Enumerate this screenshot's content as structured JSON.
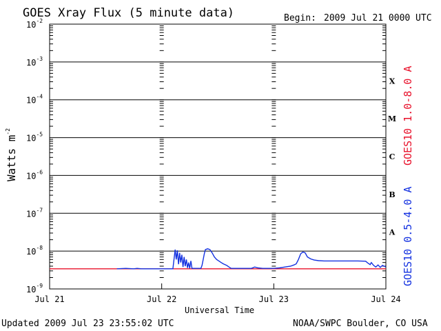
{
  "title": "GOES Xray Flux (5 minute data)",
  "begin": {
    "label": "Begin:",
    "value": "2009 Jul 21 0000 UTC"
  },
  "updated": "Updated 2009 Jul 23 23:55:02 UTC",
  "credit": "NOAA/SWPC Boulder, CO USA",
  "colors": {
    "long_channel": "#e8102a",
    "short_channel": "#1230e0",
    "axes": "#000000"
  },
  "chart_data": {
    "type": "line",
    "title": "GOES Xray Flux (5 minute data)",
    "xlabel": "Universal Time",
    "ylabel": "Watts m",
    "ylabel_superscript": "-2",
    "y_scale": "log",
    "ylim": [
      1e-09,
      0.01
    ],
    "x_days": [
      "Jul 21",
      "Jul 22",
      "Jul 23",
      "Jul 24"
    ],
    "y_ticks": [
      {
        "base": "10",
        "exp": "-2"
      },
      {
        "base": "10",
        "exp": "-3"
      },
      {
        "base": "10",
        "exp": "-4"
      },
      {
        "base": "10",
        "exp": "-5"
      },
      {
        "base": "10",
        "exp": "-6"
      },
      {
        "base": "10",
        "exp": "-7"
      },
      {
        "base": "10",
        "exp": "-8"
      },
      {
        "base": "10",
        "exp": "-9"
      }
    ],
    "flare_classes": [
      {
        "label": "X",
        "band_low": 0.0001,
        "band_high": 0.001
      },
      {
        "label": "M",
        "band_low": 1e-05,
        "band_high": 0.0001
      },
      {
        "label": "C",
        "band_low": 1e-06,
        "band_high": 1e-05
      },
      {
        "label": "B",
        "band_low": 1e-07,
        "band_high": 1e-06
      },
      {
        "label": "A",
        "band_low": 1e-08,
        "band_high": 1e-07
      }
    ],
    "grid": "horizontal lines at each decade",
    "series": [
      {
        "name": "GOES10 1.0-8.0 A",
        "color": "#e8102a",
        "points": [
          [
            0.0,
            3.4e-09
          ],
          [
            3.0,
            3.4e-09
          ]
        ]
      },
      {
        "name": "GOES10 0.5-4.0 A",
        "color": "#1230e0",
        "points": [
          [
            0.6,
            3.4e-09
          ],
          [
            0.68,
            3.5e-09
          ],
          [
            0.75,
            3.4e-09
          ],
          [
            0.78,
            3.5e-09
          ],
          [
            0.82,
            3.4e-09
          ],
          [
            1.1,
            3.4e-09
          ],
          [
            1.12,
            1.1e-08
          ],
          [
            1.13,
            6e-09
          ],
          [
            1.14,
            1.05e-08
          ],
          [
            1.15,
            4.5e-09
          ],
          [
            1.16,
            9e-09
          ],
          [
            1.17,
            5e-09
          ],
          [
            1.18,
            8e-09
          ],
          [
            1.19,
            3.8e-09
          ],
          [
            1.2,
            7e-09
          ],
          [
            1.21,
            4e-09
          ],
          [
            1.22,
            6e-09
          ],
          [
            1.23,
            3.6e-09
          ],
          [
            1.24,
            5e-09
          ],
          [
            1.25,
            3.5e-09
          ],
          [
            1.26,
            5.5e-09
          ],
          [
            1.27,
            3.5e-09
          ],
          [
            1.28,
            3.5e-09
          ],
          [
            1.35,
            3.5e-09
          ],
          [
            1.36,
            4.2e-09
          ],
          [
            1.37,
            6e-09
          ],
          [
            1.38,
            8.5e-09
          ],
          [
            1.39,
            1.1e-08
          ],
          [
            1.41,
            1.15e-08
          ],
          [
            1.43,
            1.1e-08
          ],
          [
            1.45,
            9e-09
          ],
          [
            1.47,
            7e-09
          ],
          [
            1.49,
            6e-09
          ],
          [
            1.51,
            5.5e-09
          ],
          [
            1.53,
            5e-09
          ],
          [
            1.55,
            4.6e-09
          ],
          [
            1.58,
            4.2e-09
          ],
          [
            1.6,
            3.8e-09
          ],
          [
            1.62,
            3.5e-09
          ],
          [
            1.7,
            3.5e-09
          ],
          [
            1.8,
            3.5e-09
          ],
          [
            1.83,
            3.8e-09
          ],
          [
            1.86,
            3.6e-09
          ],
          [
            1.9,
            3.5e-09
          ],
          [
            1.95,
            3.5e-09
          ],
          [
            2.0,
            3.5e-09
          ],
          [
            2.05,
            3.6e-09
          ],
          [
            2.1,
            3.8e-09
          ],
          [
            2.15,
            4e-09
          ],
          [
            2.18,
            4.3e-09
          ],
          [
            2.2,
            4.6e-09
          ],
          [
            2.22,
            6e-09
          ],
          [
            2.24,
            8.5e-09
          ],
          [
            2.26,
            9.5e-09
          ],
          [
            2.28,
            9e-09
          ],
          [
            2.3,
            7e-09
          ],
          [
            2.33,
            6.2e-09
          ],
          [
            2.36,
            5.8e-09
          ],
          [
            2.4,
            5.6e-09
          ],
          [
            2.45,
            5.5e-09
          ],
          [
            2.55,
            5.5e-09
          ],
          [
            2.65,
            5.5e-09
          ],
          [
            2.75,
            5.5e-09
          ],
          [
            2.82,
            5.4e-09
          ],
          [
            2.84,
            4.8e-09
          ],
          [
            2.86,
            4.4e-09
          ],
          [
            2.87,
            5e-09
          ],
          [
            2.89,
            4.2e-09
          ],
          [
            2.91,
            3.8e-09
          ],
          [
            2.93,
            4.3e-09
          ],
          [
            2.95,
            3.7e-09
          ],
          [
            2.97,
            4.2e-09
          ],
          [
            3.0,
            3.8e-09
          ]
        ]
      }
    ]
  }
}
